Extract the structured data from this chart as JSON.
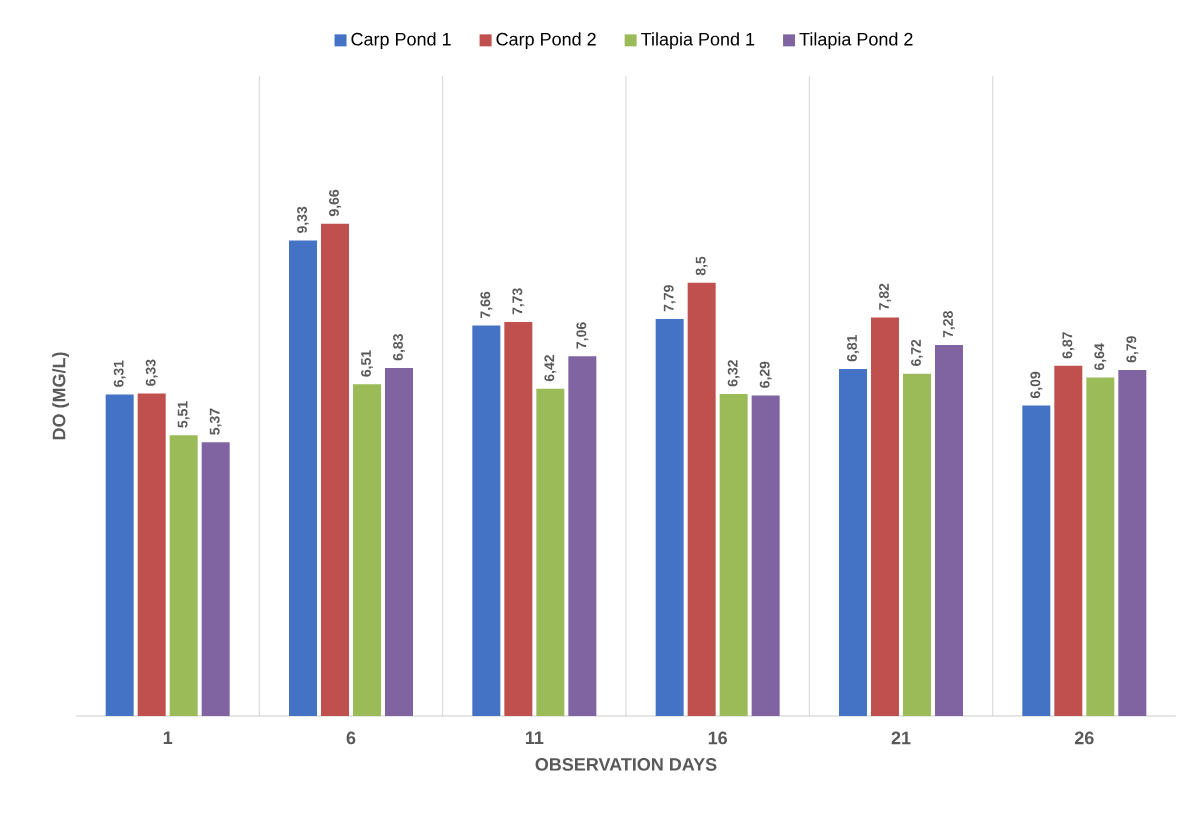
{
  "chart_data": {
    "type": "bar",
    "xlabel": "OBSERVATION DAYS",
    "ylabel": "DO (MG/L)",
    "categories": [
      "1",
      "6",
      "11",
      "16",
      "21",
      "26"
    ],
    "series": [
      {
        "name": "Carp Pond 1",
        "color": "#4472c4",
        "values": [
          6.31,
          9.33,
          7.66,
          7.79,
          6.81,
          6.09
        ],
        "value_labels": [
          "6,31",
          "9,33",
          "7,66",
          "7,79",
          "6,81",
          "6,09"
        ]
      },
      {
        "name": "Carp Pond 2",
        "color": "#c0504d",
        "values": [
          6.33,
          9.66,
          7.73,
          8.5,
          7.82,
          6.87
        ],
        "value_labels": [
          "6,33",
          "9,66",
          "7,73",
          "8,5",
          "7,82",
          "6,87"
        ]
      },
      {
        "name": "Tilapia Pond 1",
        "color": "#9bbb59",
        "values": [
          5.51,
          6.51,
          6.42,
          6.32,
          6.72,
          6.64
        ],
        "value_labels": [
          "5,51",
          "6,51",
          "6,42",
          "6,32",
          "6,72",
          "6,64"
        ]
      },
      {
        "name": "Tilapia Pond 2",
        "color": "#8064a2",
        "values": [
          5.37,
          6.83,
          7.06,
          6.29,
          7.28,
          6.79
        ],
        "value_labels": [
          "5,37",
          "6,83",
          "7,06",
          "6,29",
          "7,28",
          "6,79"
        ]
      }
    ],
    "grid": "x",
    "legend": "top"
  }
}
